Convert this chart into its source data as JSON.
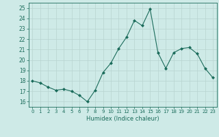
{
  "xlabel": "Humidex (Indice chaleur)",
  "x": [
    0,
    1,
    2,
    3,
    4,
    5,
    6,
    7,
    8,
    9,
    10,
    11,
    12,
    13,
    14,
    15,
    16,
    17,
    18,
    19,
    20,
    21,
    22,
    23
  ],
  "y": [
    18.0,
    17.8,
    17.4,
    17.1,
    17.2,
    17.0,
    16.6,
    16.0,
    17.1,
    18.8,
    19.7,
    21.1,
    22.2,
    23.8,
    23.3,
    24.9,
    20.7,
    19.2,
    20.7,
    21.1,
    21.2,
    20.6,
    19.2,
    18.3
  ],
  "line_color": "#1a6b5a",
  "marker": "D",
  "marker_size": 2,
  "bg_color": "#ceeae7",
  "grid_color": "#b8d4d0",
  "tick_color": "#1a6b5a",
  "label_color": "#1a6b5a",
  "ylim": [
    15.5,
    25.5
  ],
  "yticks": [
    16,
    17,
    18,
    19,
    20,
    21,
    22,
    23,
    24,
    25
  ],
  "xlim": [
    -0.5,
    23.5
  ]
}
